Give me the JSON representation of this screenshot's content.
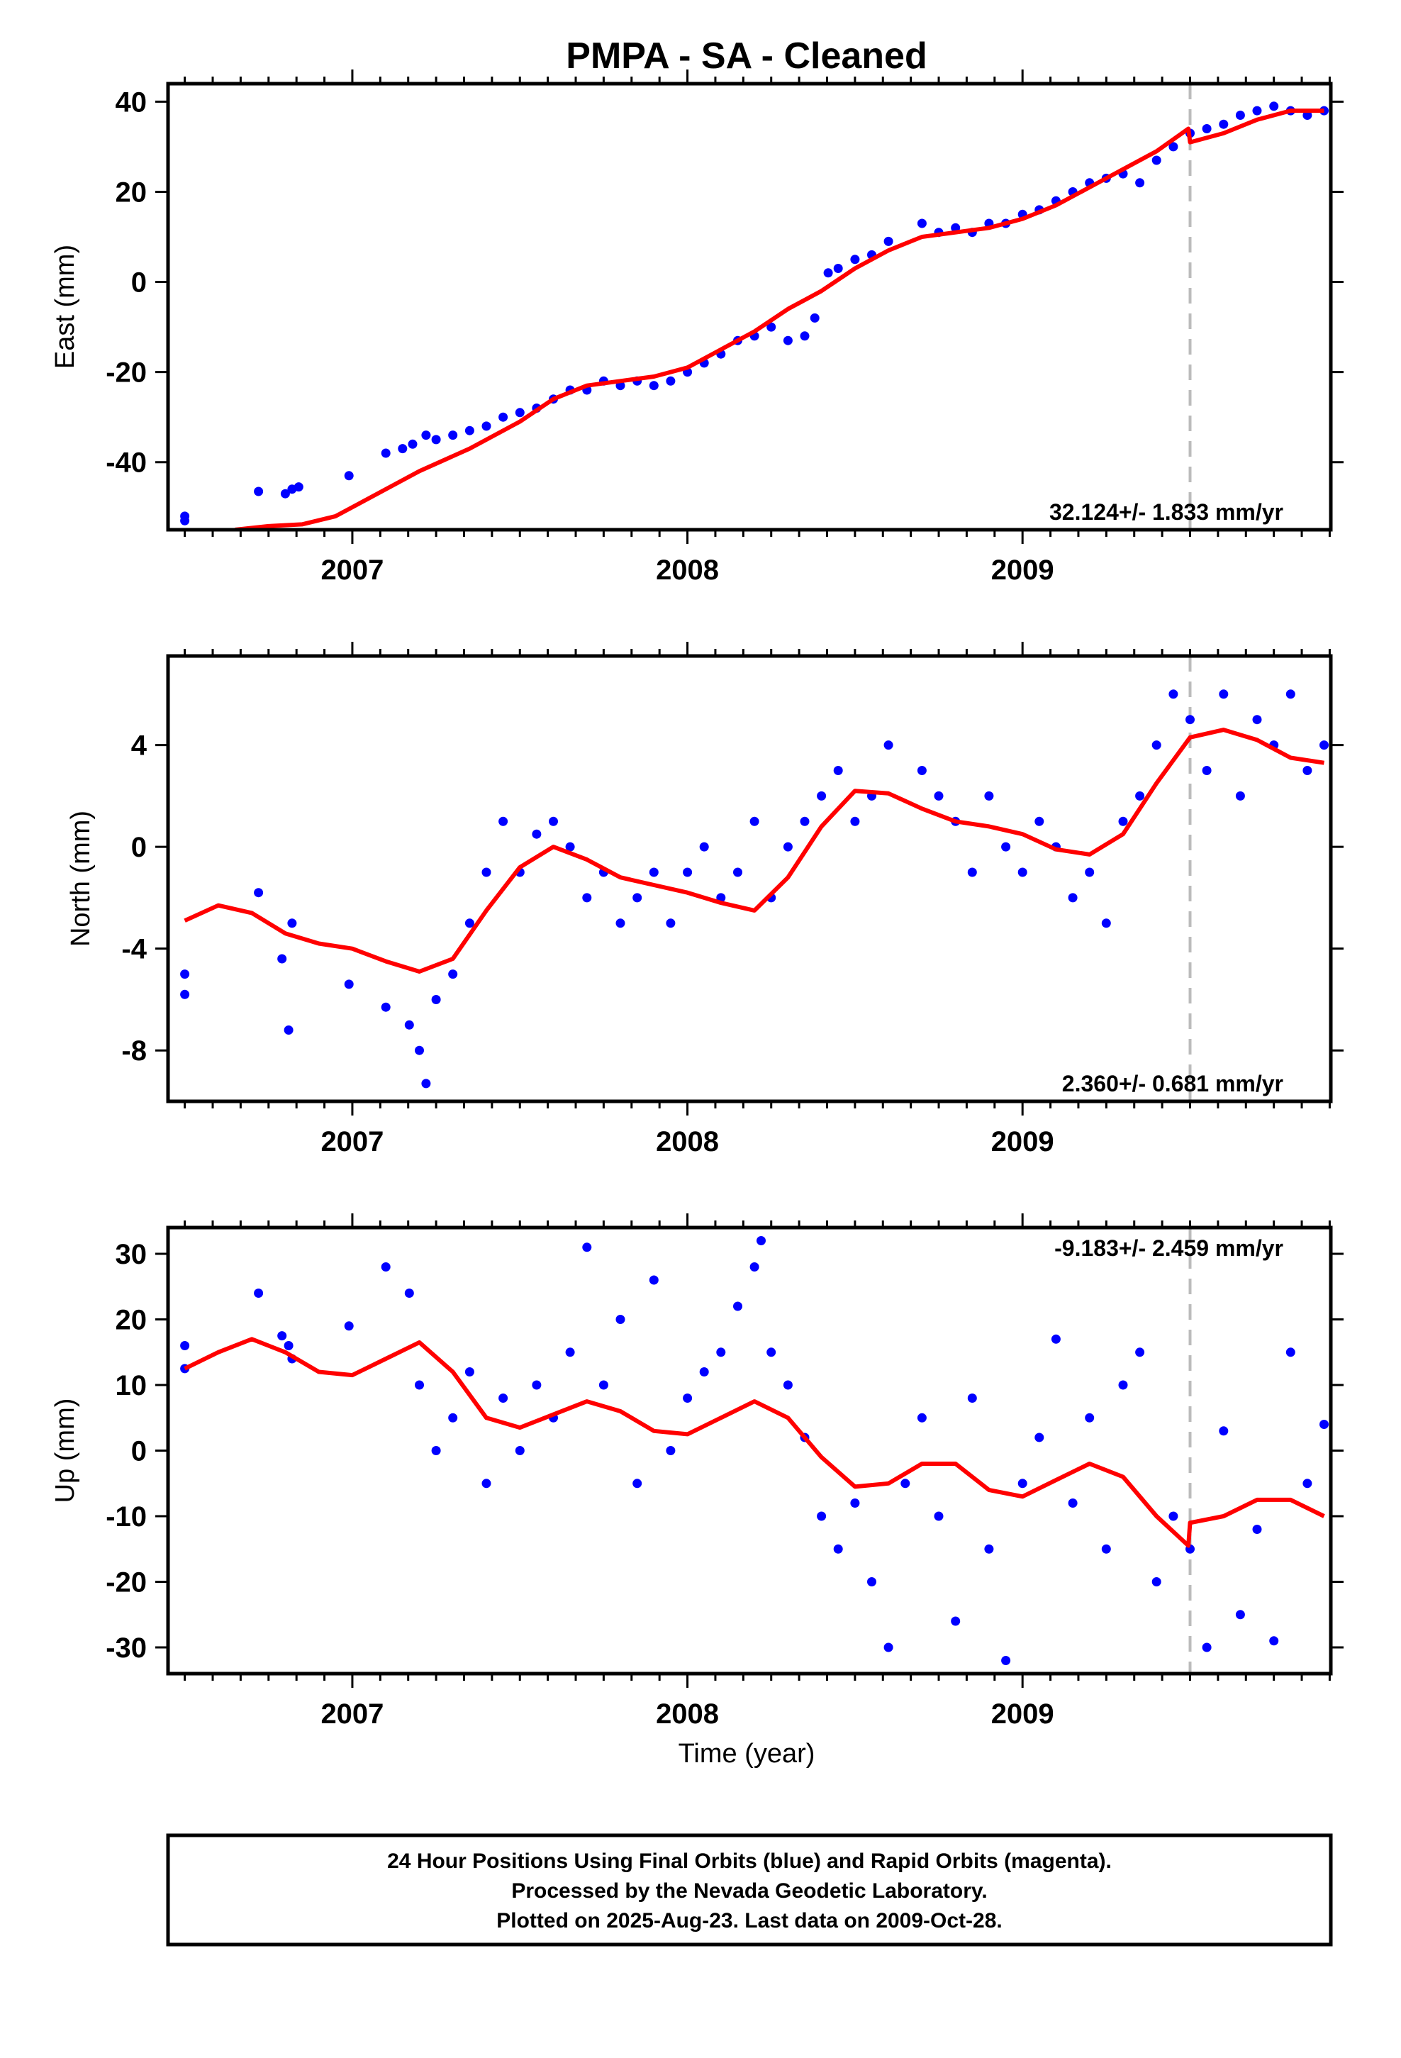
{
  "title": "PMPA  - SA - Cleaned",
  "footer": {
    "line1": "24 Hour Positions Using Final Orbits (blue) and Rapid Orbits (magenta).",
    "line2": "Processed by the Nevada Geodetic Laboratory.",
    "line3": "Plotted on 2025-Aug-23. Last data on 2009-Oct-28."
  },
  "colors": {
    "points": "#0000ff",
    "fit": "#ff0000",
    "break_line": "#bbbbbb",
    "frame": "#000000"
  },
  "x_axis_label": "Time (year)",
  "chart_data": [
    {
      "type": "scatter",
      "component": "East",
      "ylabel": "East (mm)",
      "xlim": [
        2006.45,
        2009.92
      ],
      "ylim": [
        -55,
        44
      ],
      "yticks": [
        -40,
        -20,
        0,
        20,
        40
      ],
      "xticks": [
        2007,
        2008,
        2009
      ],
      "rate_label": "32.124+/- 1.833 mm/yr",
      "rate_mm_per_yr": 32.124,
      "rate_sigma": 1.833,
      "break_epoch": 2009.5,
      "fit_curve": [
        [
          2006.65,
          -55
        ],
        [
          2006.75,
          -54.2
        ],
        [
          2006.85,
          -53.8
        ],
        [
          2006.95,
          -52
        ],
        [
          2007.05,
          -48
        ],
        [
          2007.2,
          -42
        ],
        [
          2007.35,
          -37
        ],
        [
          2007.5,
          -31
        ],
        [
          2007.6,
          -26
        ],
        [
          2007.7,
          -23
        ],
        [
          2007.8,
          -22
        ],
        [
          2007.9,
          -21
        ],
        [
          2008.0,
          -19
        ],
        [
          2008.1,
          -15
        ],
        [
          2008.2,
          -11
        ],
        [
          2008.3,
          -6
        ],
        [
          2008.4,
          -2
        ],
        [
          2008.5,
          3
        ],
        [
          2008.6,
          7
        ],
        [
          2008.7,
          10
        ],
        [
          2008.8,
          11
        ],
        [
          2008.9,
          12
        ],
        [
          2009.0,
          14
        ],
        [
          2009.1,
          17
        ],
        [
          2009.2,
          21
        ],
        [
          2009.3,
          25
        ],
        [
          2009.4,
          29
        ],
        [
          2009.495,
          34
        ],
        [
          2009.5,
          31
        ],
        [
          2009.6,
          33
        ],
        [
          2009.7,
          36
        ],
        [
          2009.8,
          38
        ],
        [
          2009.9,
          38
        ]
      ],
      "points": [
        [
          2006.5,
          -52
        ],
        [
          2006.5,
          -53
        ],
        [
          2006.72,
          -46.5
        ],
        [
          2006.8,
          -47
        ],
        [
          2006.82,
          -46
        ],
        [
          2006.84,
          -45.5
        ],
        [
          2006.99,
          -43
        ],
        [
          2007.1,
          -38
        ],
        [
          2007.15,
          -37
        ],
        [
          2007.18,
          -36
        ],
        [
          2007.22,
          -34
        ],
        [
          2007.25,
          -35
        ],
        [
          2007.3,
          -34
        ],
        [
          2007.35,
          -33
        ],
        [
          2007.4,
          -32
        ],
        [
          2007.45,
          -30
        ],
        [
          2007.5,
          -29
        ],
        [
          2007.55,
          -28
        ],
        [
          2007.6,
          -26
        ],
        [
          2007.65,
          -24
        ],
        [
          2007.7,
          -24
        ],
        [
          2007.75,
          -22
        ],
        [
          2007.8,
          -23
        ],
        [
          2007.85,
          -22
        ],
        [
          2007.9,
          -23
        ],
        [
          2007.95,
          -22
        ],
        [
          2008.0,
          -20
        ],
        [
          2008.05,
          -18
        ],
        [
          2008.1,
          -16
        ],
        [
          2008.15,
          -13
        ],
        [
          2008.2,
          -12
        ],
        [
          2008.25,
          -10
        ],
        [
          2008.3,
          -13
        ],
        [
          2008.35,
          -12
        ],
        [
          2008.38,
          -8
        ],
        [
          2008.42,
          2
        ],
        [
          2008.45,
          3
        ],
        [
          2008.5,
          5
        ],
        [
          2008.55,
          6
        ],
        [
          2008.6,
          9
        ],
        [
          2008.7,
          13
        ],
        [
          2008.75,
          11
        ],
        [
          2008.8,
          12
        ],
        [
          2008.85,
          11
        ],
        [
          2008.9,
          13
        ],
        [
          2008.95,
          13
        ],
        [
          2009.0,
          15
        ],
        [
          2009.05,
          16
        ],
        [
          2009.1,
          18
        ],
        [
          2009.15,
          20
        ],
        [
          2009.2,
          22
        ],
        [
          2009.25,
          23
        ],
        [
          2009.3,
          24
        ],
        [
          2009.35,
          22
        ],
        [
          2009.4,
          27
        ],
        [
          2009.45,
          30
        ],
        [
          2009.5,
          33
        ],
        [
          2009.55,
          34
        ],
        [
          2009.6,
          35
        ],
        [
          2009.65,
          37
        ],
        [
          2009.7,
          38
        ],
        [
          2009.75,
          39
        ],
        [
          2009.8,
          38
        ],
        [
          2009.85,
          37
        ],
        [
          2009.9,
          38
        ]
      ]
    },
    {
      "type": "scatter",
      "component": "North",
      "ylabel": "North (mm)",
      "xlim": [
        2006.45,
        2009.92
      ],
      "ylim": [
        -10,
        7.5
      ],
      "yticks": [
        -8,
        -4,
        0,
        4
      ],
      "xticks": [
        2007,
        2008,
        2009
      ],
      "rate_label": "2.360+/- 0.681 mm/yr",
      "rate_mm_per_yr": 2.36,
      "rate_sigma": 0.681,
      "break_epoch": 2009.5,
      "fit_curve": [
        [
          2006.5,
          -2.9
        ],
        [
          2006.6,
          -2.3
        ],
        [
          2006.7,
          -2.6
        ],
        [
          2006.8,
          -3.4
        ],
        [
          2006.9,
          -3.8
        ],
        [
          2007.0,
          -4.0
        ],
        [
          2007.1,
          -4.5
        ],
        [
          2007.2,
          -4.9
        ],
        [
          2007.3,
          -4.4
        ],
        [
          2007.4,
          -2.5
        ],
        [
          2007.5,
          -0.8
        ],
        [
          2007.6,
          0.0
        ],
        [
          2007.7,
          -0.5
        ],
        [
          2007.8,
          -1.2
        ],
        [
          2007.9,
          -1.5
        ],
        [
          2008.0,
          -1.8
        ],
        [
          2008.1,
          -2.2
        ],
        [
          2008.2,
          -2.5
        ],
        [
          2008.3,
          -1.2
        ],
        [
          2008.4,
          0.8
        ],
        [
          2008.5,
          2.2
        ],
        [
          2008.6,
          2.1
        ],
        [
          2008.7,
          1.5
        ],
        [
          2008.8,
          1.0
        ],
        [
          2008.9,
          0.8
        ],
        [
          2009.0,
          0.5
        ],
        [
          2009.1,
          -0.1
        ],
        [
          2009.2,
          -0.3
        ],
        [
          2009.3,
          0.5
        ],
        [
          2009.4,
          2.5
        ],
        [
          2009.5,
          4.3
        ],
        [
          2009.6,
          4.6
        ],
        [
          2009.7,
          4.2
        ],
        [
          2009.8,
          3.5
        ],
        [
          2009.9,
          3.3
        ]
      ],
      "points": [
        [
          2006.5,
          -5
        ],
        [
          2006.5,
          -5.8
        ],
        [
          2006.72,
          -1.8
        ],
        [
          2006.79,
          -4.4
        ],
        [
          2006.81,
          -7.2
        ],
        [
          2006.82,
          -3
        ],
        [
          2006.99,
          -5.4
        ],
        [
          2007.1,
          -6.3
        ],
        [
          2007.17,
          -7
        ],
        [
          2007.2,
          -8
        ],
        [
          2007.22,
          -9.3
        ],
        [
          2007.25,
          -6
        ],
        [
          2007.3,
          -5
        ],
        [
          2007.35,
          -3
        ],
        [
          2007.4,
          -1
        ],
        [
          2007.45,
          1
        ],
        [
          2007.5,
          -1
        ],
        [
          2007.55,
          0.5
        ],
        [
          2007.6,
          1
        ],
        [
          2007.65,
          0
        ],
        [
          2007.7,
          -2
        ],
        [
          2007.75,
          -1
        ],
        [
          2007.8,
          -3
        ],
        [
          2007.85,
          -2
        ],
        [
          2007.9,
          -1
        ],
        [
          2007.95,
          -3
        ],
        [
          2008.0,
          -1
        ],
        [
          2008.05,
          0
        ],
        [
          2008.1,
          -2
        ],
        [
          2008.15,
          -1
        ],
        [
          2008.2,
          1
        ],
        [
          2008.25,
          -2
        ],
        [
          2008.3,
          0
        ],
        [
          2008.35,
          1
        ],
        [
          2008.4,
          2
        ],
        [
          2008.45,
          3
        ],
        [
          2008.5,
          1
        ],
        [
          2008.55,
          2
        ],
        [
          2008.6,
          4
        ],
        [
          2008.7,
          3
        ],
        [
          2008.75,
          2
        ],
        [
          2008.8,
          1
        ],
        [
          2008.85,
          -1
        ],
        [
          2008.9,
          2
        ],
        [
          2008.95,
          0
        ],
        [
          2009.0,
          -1
        ],
        [
          2009.05,
          1
        ],
        [
          2009.1,
          0
        ],
        [
          2009.15,
          -2
        ],
        [
          2009.2,
          -1
        ],
        [
          2009.25,
          -3
        ],
        [
          2009.3,
          1
        ],
        [
          2009.35,
          2
        ],
        [
          2009.4,
          4
        ],
        [
          2009.45,
          6
        ],
        [
          2009.5,
          5
        ],
        [
          2009.55,
          3
        ],
        [
          2009.6,
          6
        ],
        [
          2009.65,
          2
        ],
        [
          2009.7,
          5
        ],
        [
          2009.75,
          4
        ],
        [
          2009.8,
          6
        ],
        [
          2009.85,
          3
        ],
        [
          2009.9,
          4
        ]
      ]
    },
    {
      "type": "scatter",
      "component": "Up",
      "ylabel": "Up (mm)",
      "xlim": [
        2006.45,
        2009.92
      ],
      "ylim": [
        -34,
        34
      ],
      "yticks": [
        -30,
        -20,
        -10,
        0,
        10,
        20,
        30
      ],
      "xticks": [
        2007,
        2008,
        2009
      ],
      "rate_label": "-9.183+/- 2.459 mm/yr",
      "rate_mm_per_yr": -9.183,
      "rate_sigma": 2.459,
      "break_epoch": 2009.5,
      "fit_curve": [
        [
          2006.5,
          12.5
        ],
        [
          2006.6,
          15
        ],
        [
          2006.7,
          17
        ],
        [
          2006.8,
          15
        ],
        [
          2006.9,
          12
        ],
        [
          2007.0,
          11.5
        ],
        [
          2007.1,
          14
        ],
        [
          2007.2,
          16.5
        ],
        [
          2007.3,
          12
        ],
        [
          2007.4,
          5
        ],
        [
          2007.5,
          3.5
        ],
        [
          2007.6,
          5.5
        ],
        [
          2007.7,
          7.5
        ],
        [
          2007.8,
          6
        ],
        [
          2007.9,
          3
        ],
        [
          2008.0,
          2.5
        ],
        [
          2008.1,
          5
        ],
        [
          2008.2,
          7.5
        ],
        [
          2008.3,
          5
        ],
        [
          2008.4,
          -1
        ],
        [
          2008.5,
          -5.5
        ],
        [
          2008.6,
          -5
        ],
        [
          2008.7,
          -2
        ],
        [
          2008.8,
          -2
        ],
        [
          2008.9,
          -6
        ],
        [
          2009.0,
          -7
        ],
        [
          2009.1,
          -4.5
        ],
        [
          2009.2,
          -2
        ],
        [
          2009.3,
          -4
        ],
        [
          2009.4,
          -10
        ],
        [
          2009.495,
          -14.5
        ],
        [
          2009.5,
          -11
        ],
        [
          2009.6,
          -10
        ],
        [
          2009.7,
          -7.5
        ],
        [
          2009.8,
          -7.5
        ],
        [
          2009.9,
          -10
        ]
      ],
      "points": [
        [
          2006.5,
          16
        ],
        [
          2006.5,
          12.5
        ],
        [
          2006.72,
          24
        ],
        [
          2006.79,
          17.5
        ],
        [
          2006.81,
          16
        ],
        [
          2006.82,
          14
        ],
        [
          2006.99,
          19
        ],
        [
          2007.1,
          28
        ],
        [
          2007.17,
          24
        ],
        [
          2007.2,
          10
        ],
        [
          2007.25,
          0
        ],
        [
          2007.3,
          5
        ],
        [
          2007.35,
          12
        ],
        [
          2007.4,
          -5
        ],
        [
          2007.45,
          8
        ],
        [
          2007.5,
          0
        ],
        [
          2007.55,
          10
        ],
        [
          2007.6,
          5
        ],
        [
          2007.65,
          15
        ],
        [
          2007.7,
          31
        ],
        [
          2007.75,
          10
        ],
        [
          2007.8,
          20
        ],
        [
          2007.85,
          -5
        ],
        [
          2007.9,
          26
        ],
        [
          2007.95,
          0
        ],
        [
          2008.0,
          8
        ],
        [
          2008.05,
          12
        ],
        [
          2008.1,
          15
        ],
        [
          2008.15,
          22
        ],
        [
          2008.2,
          28
        ],
        [
          2008.22,
          32
        ],
        [
          2008.25,
          15
        ],
        [
          2008.3,
          10
        ],
        [
          2008.35,
          2
        ],
        [
          2008.4,
          -10
        ],
        [
          2008.45,
          -15
        ],
        [
          2008.5,
          -8
        ],
        [
          2008.55,
          -20
        ],
        [
          2008.6,
          -30
        ],
        [
          2008.65,
          -5
        ],
        [
          2008.7,
          5
        ],
        [
          2008.75,
          -10
        ],
        [
          2008.8,
          -26
        ],
        [
          2008.85,
          8
        ],
        [
          2008.9,
          -15
        ],
        [
          2008.95,
          -32
        ],
        [
          2009.0,
          -5
        ],
        [
          2009.05,
          2
        ],
        [
          2009.1,
          17
        ],
        [
          2009.15,
          -8
        ],
        [
          2009.2,
          5
        ],
        [
          2009.25,
          -15
        ],
        [
          2009.3,
          10
        ],
        [
          2009.35,
          15
        ],
        [
          2009.4,
          -20
        ],
        [
          2009.45,
          -10
        ],
        [
          2009.5,
          -15
        ],
        [
          2009.55,
          -30
        ],
        [
          2009.6,
          3
        ],
        [
          2009.65,
          -25
        ],
        [
          2009.7,
          -12
        ],
        [
          2009.75,
          -29
        ],
        [
          2009.8,
          15
        ],
        [
          2009.85,
          -5
        ],
        [
          2009.9,
          4
        ]
      ]
    }
  ]
}
